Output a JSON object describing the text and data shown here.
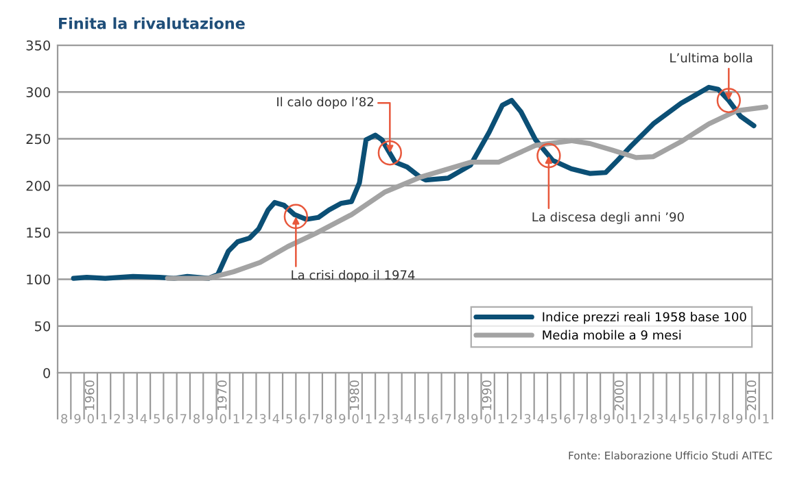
{
  "chart_data": {
    "type": "line",
    "title": "Finita la rivalutazione",
    "series": [
      {
        "name": "Indice prezzi reali 1958 base 100",
        "color": "#0b4f75",
        "x": [
          1958.7,
          1959.7,
          1961.1,
          1963.2,
          1965.2,
          1966.3,
          1967.3,
          1968.9,
          1969.6,
          1970.4,
          1971.1,
          1972,
          1972.7,
          1973.4,
          1973.9,
          1974.6,
          1975.4,
          1976.3,
          1977.2,
          1978,
          1978.9,
          1979.7,
          1980.3,
          1980.8,
          1981.5,
          1982,
          1982.5,
          1983,
          1983.9,
          1984.9,
          1985.3,
          1987,
          1988.7,
          1990.1,
          1991.1,
          1991.8,
          1992.5,
          1993.6,
          1994.9,
          1996.3,
          1997.7,
          1998.9,
          1999.8,
          2000.8,
          2002.5,
          2004.6,
          2006.7,
          2007.4,
          2008.2,
          2009.1,
          2010.1
        ],
        "values": [
          101,
          102,
          101,
          103,
          102,
          101,
          103,
          101,
          105,
          130,
          140,
          144,
          154,
          174,
          182,
          179,
          169,
          164,
          166,
          174,
          181,
          183,
          203,
          249,
          254,
          249,
          237,
          225,
          220,
          209,
          206,
          208,
          222,
          257,
          286,
          291,
          279,
          249,
          227,
          218,
          213,
          214,
          227,
          242,
          266,
          288,
          305,
          303,
          291,
          274,
          264
        ]
      },
      {
        "name": "Media mobile a 9 mesi",
        "color": "#a3a3a3",
        "x": [
          1965.8,
          1968.9,
          1970.8,
          1972.8,
          1974.9,
          1977,
          1979.7,
          1982.2,
          1984.9,
          1988.7,
          1990.8,
          1993.6,
          1996.3,
          1997.7,
          1999.4,
          2001.2,
          2002.5,
          2004.6,
          2006.7,
          2008.8,
          2011
        ],
        "values": [
          101,
          101,
          108,
          118,
          135,
          149,
          169,
          193,
          209,
          225,
          225,
          243,
          248,
          245,
          238,
          230,
          231,
          247,
          266,
          280,
          284
        ]
      }
    ],
    "xlim": [
      1957.5,
      2011.5
    ],
    "xticks": [
      1960,
      1970,
      1980,
      1990,
      2000,
      2010
    ],
    "ylim": [
      0,
      350
    ],
    "yticks": [
      0,
      50,
      100,
      150,
      200,
      250,
      300,
      350
    ],
    "grid": "y",
    "legend": "bottom right",
    "marker": "none",
    "line_style": "solid",
    "annotations": [
      {
        "text": "La crisi dopo il 1974",
        "x": 1975.5,
        "y": 167
      },
      {
        "text": "Il calo dopo l’82",
        "x": 1982.6,
        "y": 235
      },
      {
        "text": "La discesa degli anni ’90",
        "x": 1994.6,
        "y": 232
      },
      {
        "text": "L’ultima bolla",
        "x": 2008.2,
        "y": 291
      },
      "8",
      "9",
      "0",
      "1",
      "2",
      "3",
      "4",
      "5",
      "6",
      "7",
      "8",
      "9",
      "0",
      "1",
      "2",
      "3",
      "4",
      "5",
      "6",
      "7",
      "8",
      "9",
      "0",
      "1",
      "2",
      "3",
      "4",
      "5",
      "6",
      "7",
      "8",
      "9",
      "0",
      "1",
      "2",
      "3",
      "4",
      "5",
      "6",
      "7",
      "8",
      "9",
      "0",
      "1",
      "2",
      "3",
      "4",
      "5",
      "6",
      "7",
      "8",
      "9",
      "0",
      "1",
      "Fonte: Elaborazione Ufficio Studi AITEC"
    ]
  }
}
